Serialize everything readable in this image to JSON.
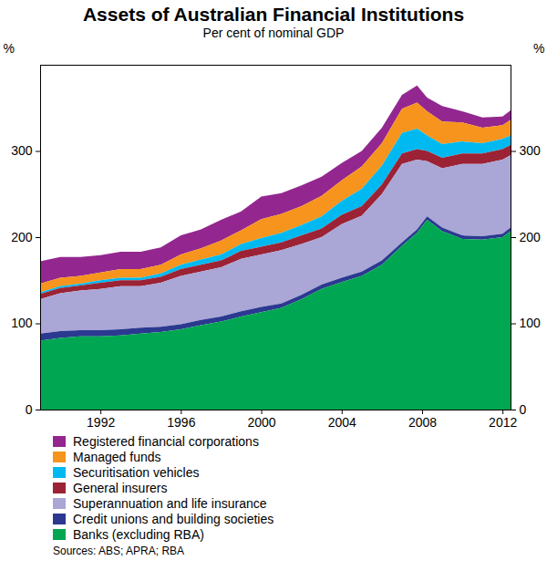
{
  "chart_data": {
    "type": "area",
    "stacked": true,
    "title": "Assets of Australian Financial Institutions",
    "subtitle": "Per cent of nominal GDP",
    "y_label": "%",
    "source": "Sources: ABS; APRA; RBA",
    "x": [
      1989,
      1990,
      1991,
      1992,
      1993,
      1994,
      1995,
      1996,
      1997,
      1998,
      1999,
      2000,
      2001,
      2002,
      2003,
      2004,
      2005,
      2006,
      2007,
      2007.75,
      2008.25,
      2009,
      2010,
      2011,
      2012,
      2012.4
    ],
    "xlim": [
      1989,
      2012.4
    ],
    "xticks": [
      1992,
      1996,
      2000,
      2004,
      2008,
      2012
    ],
    "ylim": [
      0,
      400
    ],
    "yticks": [
      0,
      100,
      200,
      300
    ],
    "grid": false,
    "series": [
      {
        "name": "Registered financial corporations",
        "color": "#93278f",
        "values": [
          26,
          24,
          22,
          20,
          20,
          20,
          20,
          22,
          22,
          24,
          22,
          26,
          24,
          24,
          22,
          20,
          18,
          18,
          16,
          20,
          16,
          18,
          13,
          12,
          10,
          11
        ]
      },
      {
        "name": "Managed funds",
        "color": "#f7941d",
        "values": [
          10,
          10,
          9,
          9,
          10,
          10,
          10,
          12,
          13,
          16,
          16,
          22,
          22,
          22,
          24,
          24,
          26,
          26,
          28,
          30,
          28,
          26,
          22,
          18,
          16,
          18
        ]
      },
      {
        "name": "Securitisation vehicles",
        "color": "#00b9f1",
        "values": [
          2,
          2,
          2,
          3,
          3,
          3,
          4,
          5,
          6,
          7,
          8,
          10,
          11,
          12,
          14,
          16,
          20,
          22,
          24,
          24,
          18,
          16,
          14,
          12,
          12,
          11
        ]
      },
      {
        "name": "General insurers",
        "color": "#9b2335",
        "values": [
          6,
          6,
          6,
          7,
          7,
          7,
          7,
          8,
          8,
          8,
          9,
          9,
          9,
          10,
          10,
          11,
          11,
          11,
          12,
          12,
          12,
          12,
          12,
          12,
          12,
          12
        ]
      },
      {
        "name": "Superannuation and life insurance",
        "color": "#aaa6d6",
        "values": [
          40,
          44,
          46,
          48,
          50,
          48,
          51,
          56,
          56,
          57,
          61,
          61,
          62,
          59,
          55,
          62,
          65,
          77,
          91,
          81,
          64,
          69,
          83,
          84,
          86,
          84
        ]
      },
      {
        "name": "Credit unions and building societies",
        "color": "#2b3990",
        "values": [
          8,
          8,
          7,
          7,
          7,
          7,
          6,
          6,
          6,
          6,
          6,
          6,
          5,
          5,
          5,
          5,
          5,
          5,
          4,
          4,
          4,
          4,
          4,
          4,
          4,
          4
        ]
      },
      {
        "name": "Banks (excluding RBA)",
        "color": "#00a651",
        "values": [
          80,
          83,
          85,
          85,
          86,
          88,
          90,
          93,
          98,
          102,
          108,
          113,
          118,
          128,
          140,
          148,
          155,
          168,
          190,
          205,
          220,
          207,
          198,
          197,
          200,
          207
        ]
      }
    ]
  }
}
